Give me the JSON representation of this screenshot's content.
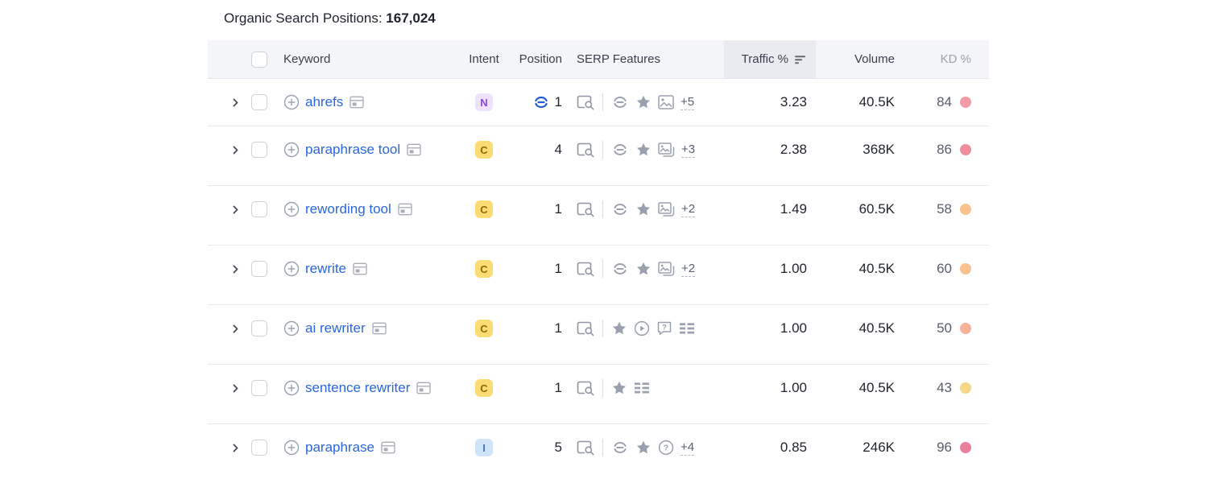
{
  "header": {
    "title_label": "Organic Search Positions:",
    "title_value": "167,024"
  },
  "table": {
    "columns": {
      "keyword": "Keyword",
      "intent": "Intent",
      "position": "Position",
      "serp_features": "SERP Features",
      "traffic": "Traffic %",
      "volume": "Volume",
      "kd": "KD %"
    },
    "sorted_column": "Traffic %",
    "rows": [
      {
        "keyword": "ahrefs",
        "intent": "N",
        "position": "1",
        "position_link": true,
        "features": [
          "link-icon",
          "star-icon",
          "image-icon"
        ],
        "more": "+5",
        "traffic": "3.23",
        "volume": "40.5K",
        "kd": "84",
        "kd_color": "#f19da8"
      },
      {
        "keyword": "paraphrase tool",
        "intent": "C",
        "position": "4",
        "position_link": false,
        "features": [
          "link-icon",
          "star-icon",
          "image-pack-icon"
        ],
        "more": "+3",
        "traffic": "2.38",
        "volume": "368K",
        "kd": "86",
        "kd_color": "#ee8d9f"
      },
      {
        "keyword": "rewording tool",
        "intent": "C",
        "position": "1",
        "position_link": false,
        "features": [
          "link-icon",
          "star-icon",
          "image-pack-icon"
        ],
        "more": "+2",
        "traffic": "1.49",
        "volume": "60.5K",
        "kd": "58",
        "kd_color": "#f8c18e"
      },
      {
        "keyword": "rewrite",
        "intent": "C",
        "position": "1",
        "position_link": false,
        "features": [
          "link-icon",
          "star-icon",
          "image-pack-icon"
        ],
        "more": "+2",
        "traffic": "1.00",
        "volume": "40.5K",
        "kd": "60",
        "kd_color": "#f8c18e"
      },
      {
        "keyword": "ai rewriter",
        "intent": "C",
        "position": "1",
        "position_link": false,
        "features": [
          "star-icon",
          "video-icon",
          "people-also-ask-icon",
          "sitelinks-icon"
        ],
        "more": null,
        "traffic": "1.00",
        "volume": "40.5K",
        "kd": "50",
        "kd_color": "#f7b297"
      },
      {
        "keyword": "sentence rewriter",
        "intent": "C",
        "position": "1",
        "position_link": false,
        "features": [
          "star-icon",
          "sitelinks-icon"
        ],
        "more": null,
        "traffic": "1.00",
        "volume": "40.5K",
        "kd": "43",
        "kd_color": "#f5d887"
      },
      {
        "keyword": "paraphrase",
        "intent": "I",
        "position": "5",
        "position_link": false,
        "features": [
          "link-icon",
          "star-icon",
          "faq-icon"
        ],
        "more": "+4",
        "traffic": "0.85",
        "volume": "246K",
        "kd": "96",
        "kd_color": "#e97f9d"
      }
    ]
  },
  "theme": {
    "intent_colors": {
      "N": {
        "bg": "#ede3fc",
        "fg": "#8a46e4"
      },
      "C": {
        "bg": "#fbdc74",
        "fg": "#92660a"
      },
      "I": {
        "bg": "#cfe4f8",
        "fg": "#3d7abc"
      }
    },
    "keyword_link_color": "#2b66e0",
    "position_link_icon_color": "#1e5ed9"
  }
}
